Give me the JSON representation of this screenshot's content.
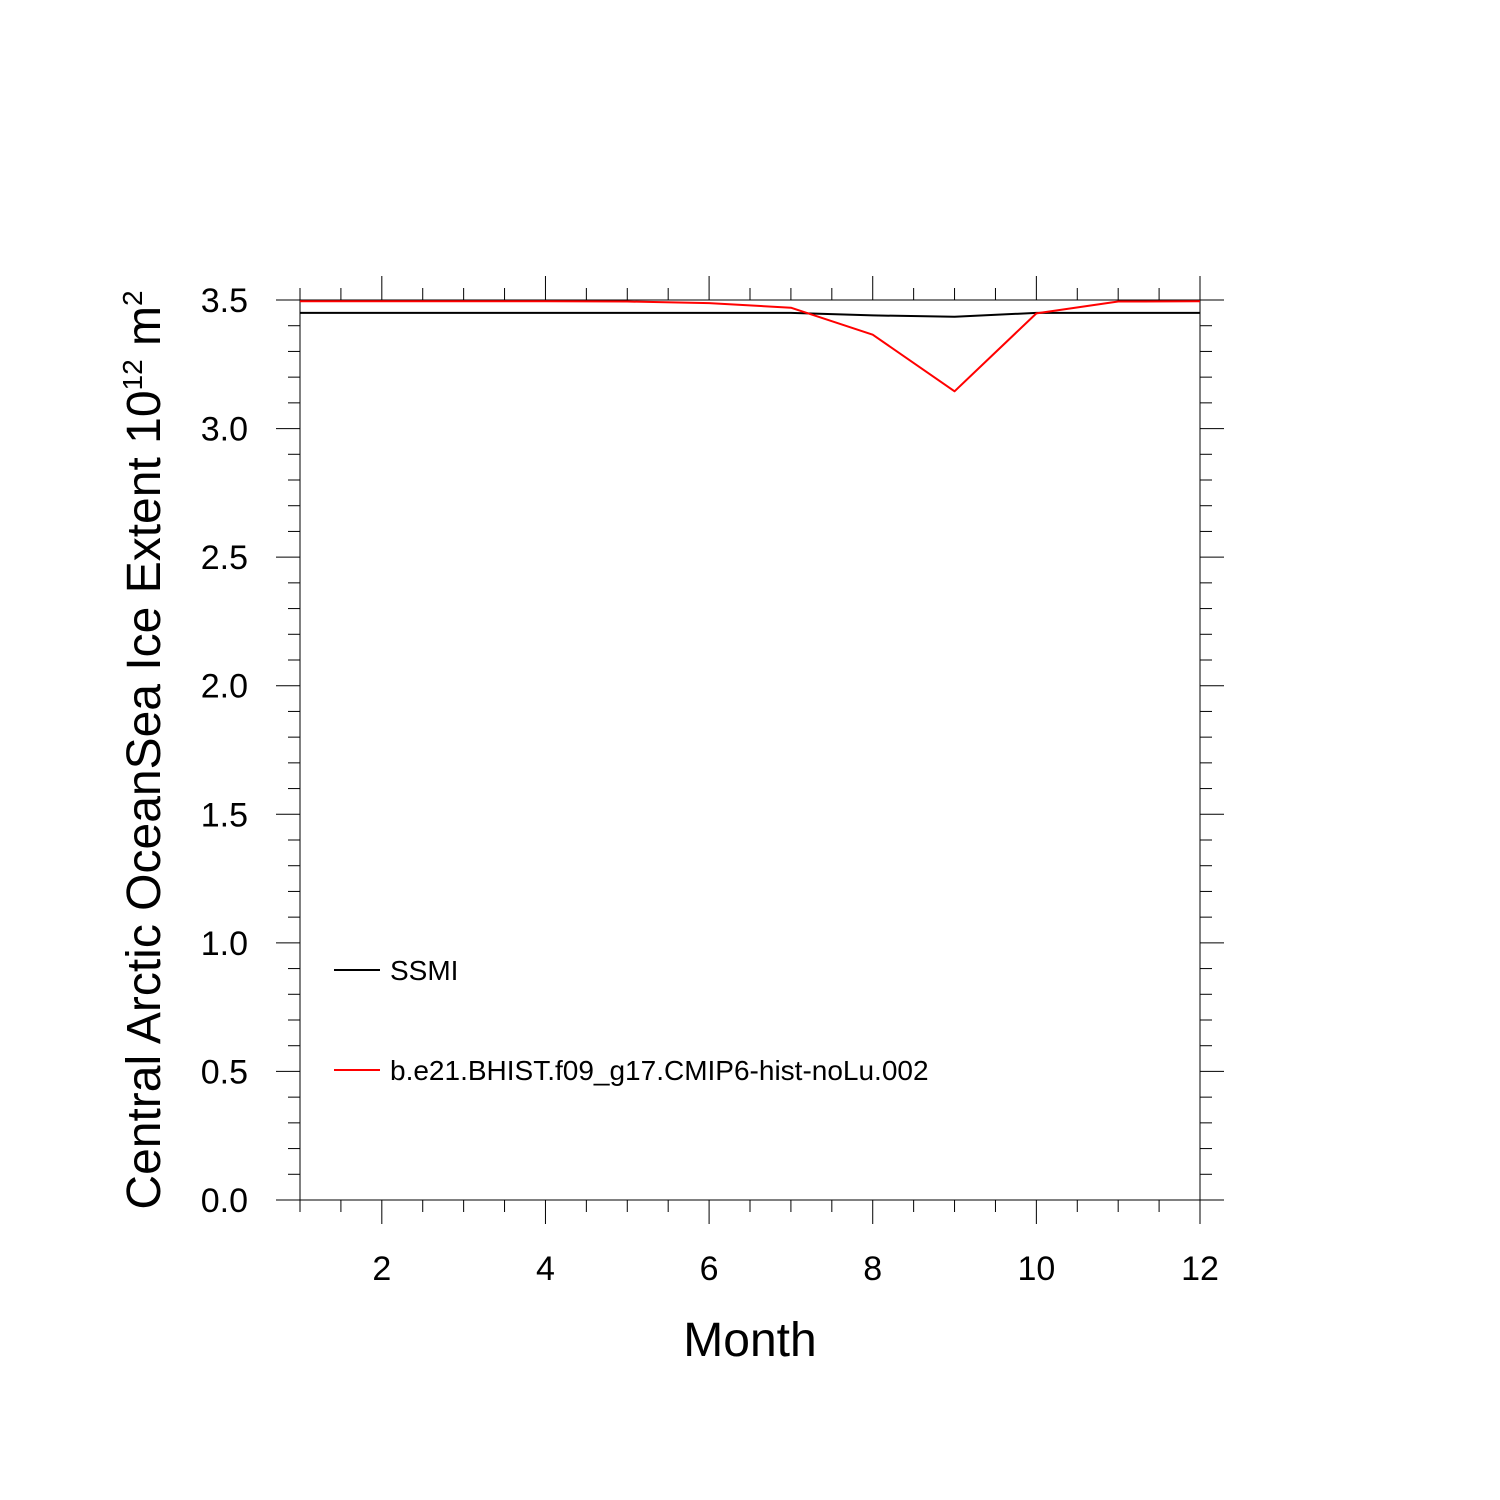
{
  "chart_data": {
    "type": "line",
    "xlabel": "Month",
    "ylabel": {
      "text": "Central Arctic OceanSea Ice Extent 10",
      "superscript": "12",
      "unit": " m",
      "unit_superscript": "2"
    },
    "xlim": [
      1,
      12
    ],
    "ylim": [
      0,
      3.5
    ],
    "x_ticks": [
      2,
      4,
      6,
      8,
      10,
      12
    ],
    "x_tick_labels": [
      "2",
      "4",
      "6",
      "8",
      "10",
      "12"
    ],
    "y_ticks": [
      0,
      0.5,
      1,
      1.5,
      2,
      2.5,
      3,
      3.5
    ],
    "y_tick_labels": [
      "0.0",
      "0.5",
      "1.0",
      "1.5",
      "2.0",
      "2.5",
      "3.0",
      "3.5"
    ],
    "x": [
      1,
      2,
      3,
      4,
      5,
      6,
      7,
      8,
      9,
      10,
      11,
      12
    ],
    "series": [
      {
        "name": "SSMI",
        "color": "#000000",
        "values": [
          3.45,
          3.45,
          3.45,
          3.45,
          3.45,
          3.45,
          3.45,
          3.44,
          3.435,
          3.45,
          3.45,
          3.45
        ]
      },
      {
        "name": "b.e21.BHIST.f09_g17.CMIP6-hist-noLu.002",
        "color": "#ff0000",
        "values": [
          3.495,
          3.495,
          3.495,
          3.495,
          3.494,
          3.488,
          3.47,
          3.365,
          3.145,
          3.448,
          3.494,
          3.495
        ]
      }
    ],
    "legend_position": "bottom-left",
    "grid": false
  }
}
